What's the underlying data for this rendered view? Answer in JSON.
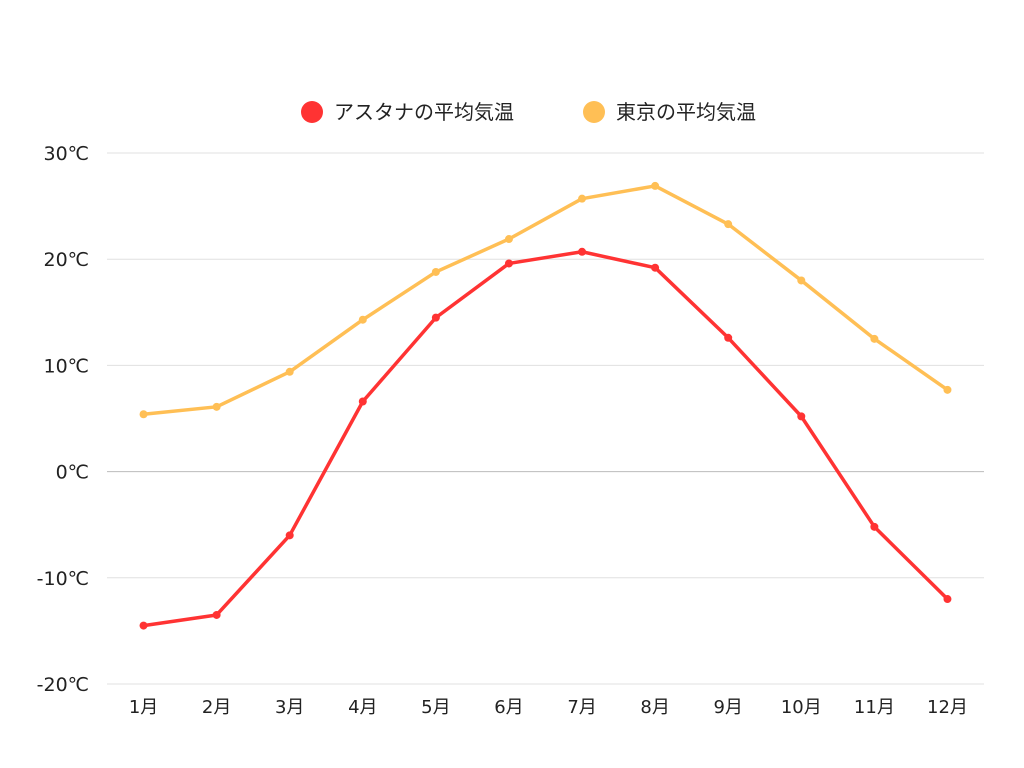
{
  "chart_data": {
    "type": "line",
    "title": "",
    "xlabel": "",
    "ylabel": "",
    "categories": [
      "1月",
      "2月",
      "3月",
      "4月",
      "5月",
      "6月",
      "7月",
      "8月",
      "9月",
      "10月",
      "11月",
      "12月"
    ],
    "ylim": [
      -20,
      30
    ],
    "yticks": [
      30,
      20,
      10,
      0,
      -10,
      -20
    ],
    "ytick_labels": [
      "30℃",
      "20℃",
      "10℃",
      "0℃",
      "-10℃",
      "-20℃"
    ],
    "grid": true,
    "legend_position": "top-center",
    "series": [
      {
        "name": "アスタナの平均気温",
        "color": "#ff3333",
        "values": [
          -14.5,
          -13.5,
          -6.0,
          6.6,
          14.5,
          19.6,
          20.7,
          19.2,
          12.6,
          5.2,
          -5.2,
          -12.0
        ]
      },
      {
        "name": "東京の平均気温",
        "color": "#ffbf55",
        "values": [
          5.4,
          6.1,
          9.4,
          14.3,
          18.8,
          21.9,
          25.7,
          26.9,
          23.3,
          18.0,
          12.5,
          7.7
        ]
      }
    ]
  }
}
